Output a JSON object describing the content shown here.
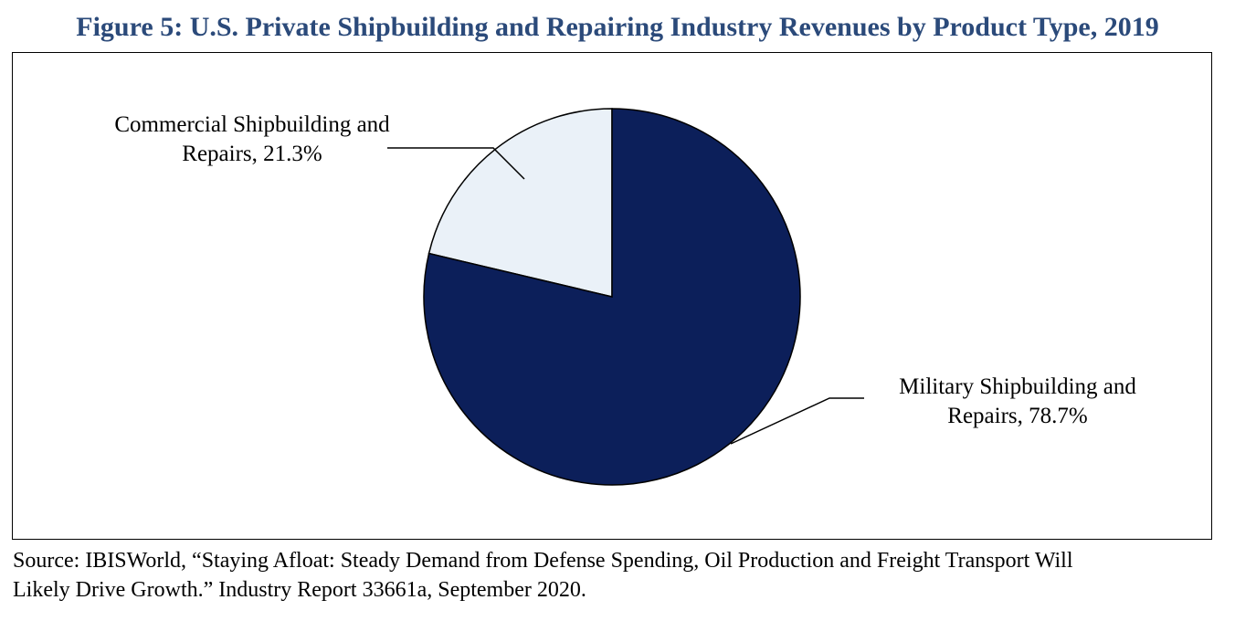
{
  "figure_title": "Figure 5:  U.S. Private Shipbuilding and Repairing Industry Revenues by Product Type, 2019",
  "colors": {
    "title": "#2b4a7a",
    "military": "#0c1f5a",
    "commercial": "#eaf1f8",
    "slice_border": "#000000",
    "label_text": "#000000"
  },
  "chart_data": {
    "type": "pie",
    "title": "U.S. Private Shipbuilding and Repairing Industry Revenues by Product Type, 2019",
    "slices": [
      {
        "name": "Commercial Shipbuilding and Repairs",
        "value": 21.3,
        "label_line1": "Commercial Shipbuilding and",
        "label_line2": "Repairs, 21.3%",
        "color": "#eaf1f8"
      },
      {
        "name": "Military Shipbuilding and Repairs",
        "value": 78.7,
        "label_line1": "Military Shipbuilding and",
        "label_line2": "Repairs, 78.7%",
        "color": "#0c1f5a"
      }
    ]
  },
  "source": {
    "line1": "Source:  IBISWorld, “Staying Afloat:  Steady Demand from Defense Spending, Oil Production and Freight Transport Will",
    "line2": "Likely Drive Growth.”  Industry Report 33661a, September 2020."
  }
}
